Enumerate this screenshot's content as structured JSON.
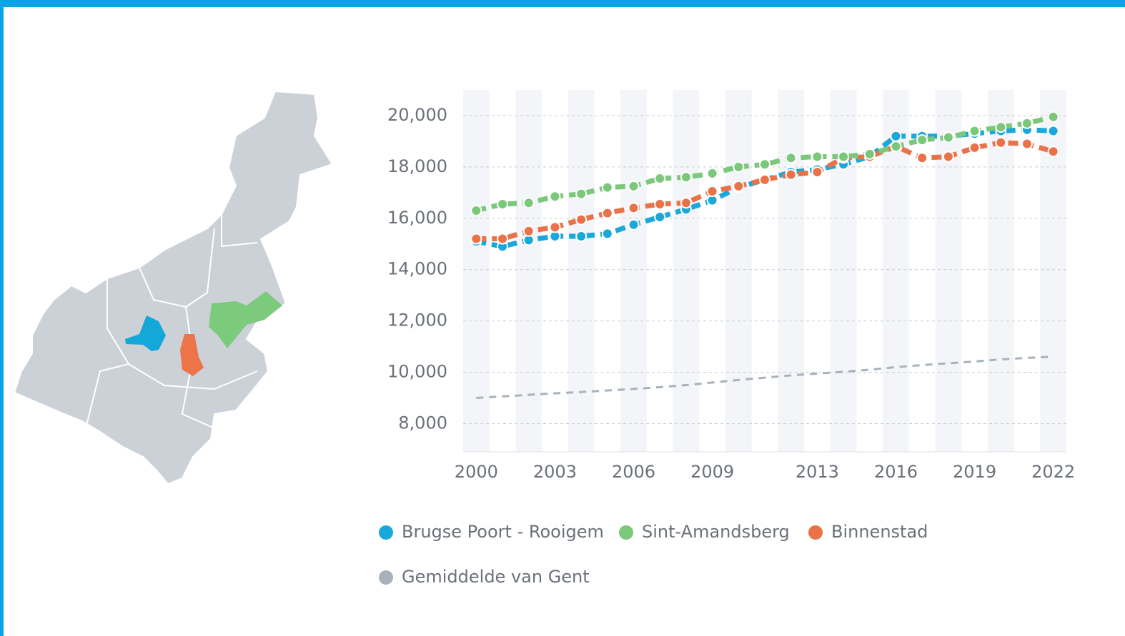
{
  "chart_data": {
    "type": "line",
    "x": [
      2000,
      2001,
      2002,
      2003,
      2004,
      2005,
      2006,
      2007,
      2008,
      2009,
      2010,
      2011,
      2012,
      2013,
      2014,
      2015,
      2016,
      2017,
      2018,
      2019,
      2020,
      2021,
      2022
    ],
    "series": [
      {
        "name": "Brugse Poort - Rooigem",
        "color": "#1aa7d9",
        "marker": true,
        "values": [
          15100,
          14900,
          15150,
          15300,
          15300,
          15400,
          15750,
          16050,
          16350,
          16700,
          17200,
          17500,
          17800,
          17900,
          18100,
          18400,
          19200,
          19200,
          19200,
          19300,
          19400,
          19450,
          19400
        ]
      },
      {
        "name": "Sint-Amandsberg",
        "color": "#7cc87b",
        "marker": true,
        "values": [
          16300,
          16550,
          16600,
          16850,
          16950,
          17200,
          17250,
          17550,
          17600,
          17750,
          18000,
          18100,
          18350,
          18400,
          18400,
          18500,
          18800,
          19050,
          19150,
          19400,
          19550,
          19700,
          19950
        ]
      },
      {
        "name": "Binnenstad",
        "color": "#ea7249",
        "marker": true,
        "values": [
          15200,
          15200,
          15500,
          15650,
          15950,
          16200,
          16400,
          16550,
          16600,
          17050,
          17250,
          17500,
          17700,
          17800,
          18350,
          18400,
          18800,
          18350,
          18400,
          18750,
          18950,
          18900,
          18600
        ]
      },
      {
        "name": "Gemiddelde van Gent",
        "color": "#a9b1bb",
        "marker": false,
        "values": [
          9000,
          9060,
          9120,
          9180,
          9230,
          9290,
          9350,
          9420,
          9500,
          9600,
          9700,
          9790,
          9880,
          9950,
          10020,
          10100,
          10200,
          10280,
          10350,
          10420,
          10500,
          10560,
          10610
        ]
      }
    ],
    "xlim": [
      1999.5,
      2022.5
    ],
    "xticks": [
      2000,
      2003,
      2006,
      2009,
      2013,
      2016,
      2019,
      2022
    ],
    "ylim": [
      6900,
      21000
    ],
    "yticks": [
      {
        "value": 8000,
        "label": "8,000"
      },
      {
        "value": 10000,
        "label": "10,000"
      },
      {
        "value": 12000,
        "label": "12,000"
      },
      {
        "value": 14000,
        "label": "14,000"
      },
      {
        "value": 16000,
        "label": "16,000"
      },
      {
        "value": 18000,
        "label": "18,000"
      },
      {
        "value": 20000,
        "label": "20,000"
      }
    ],
    "grid": true
  }
}
